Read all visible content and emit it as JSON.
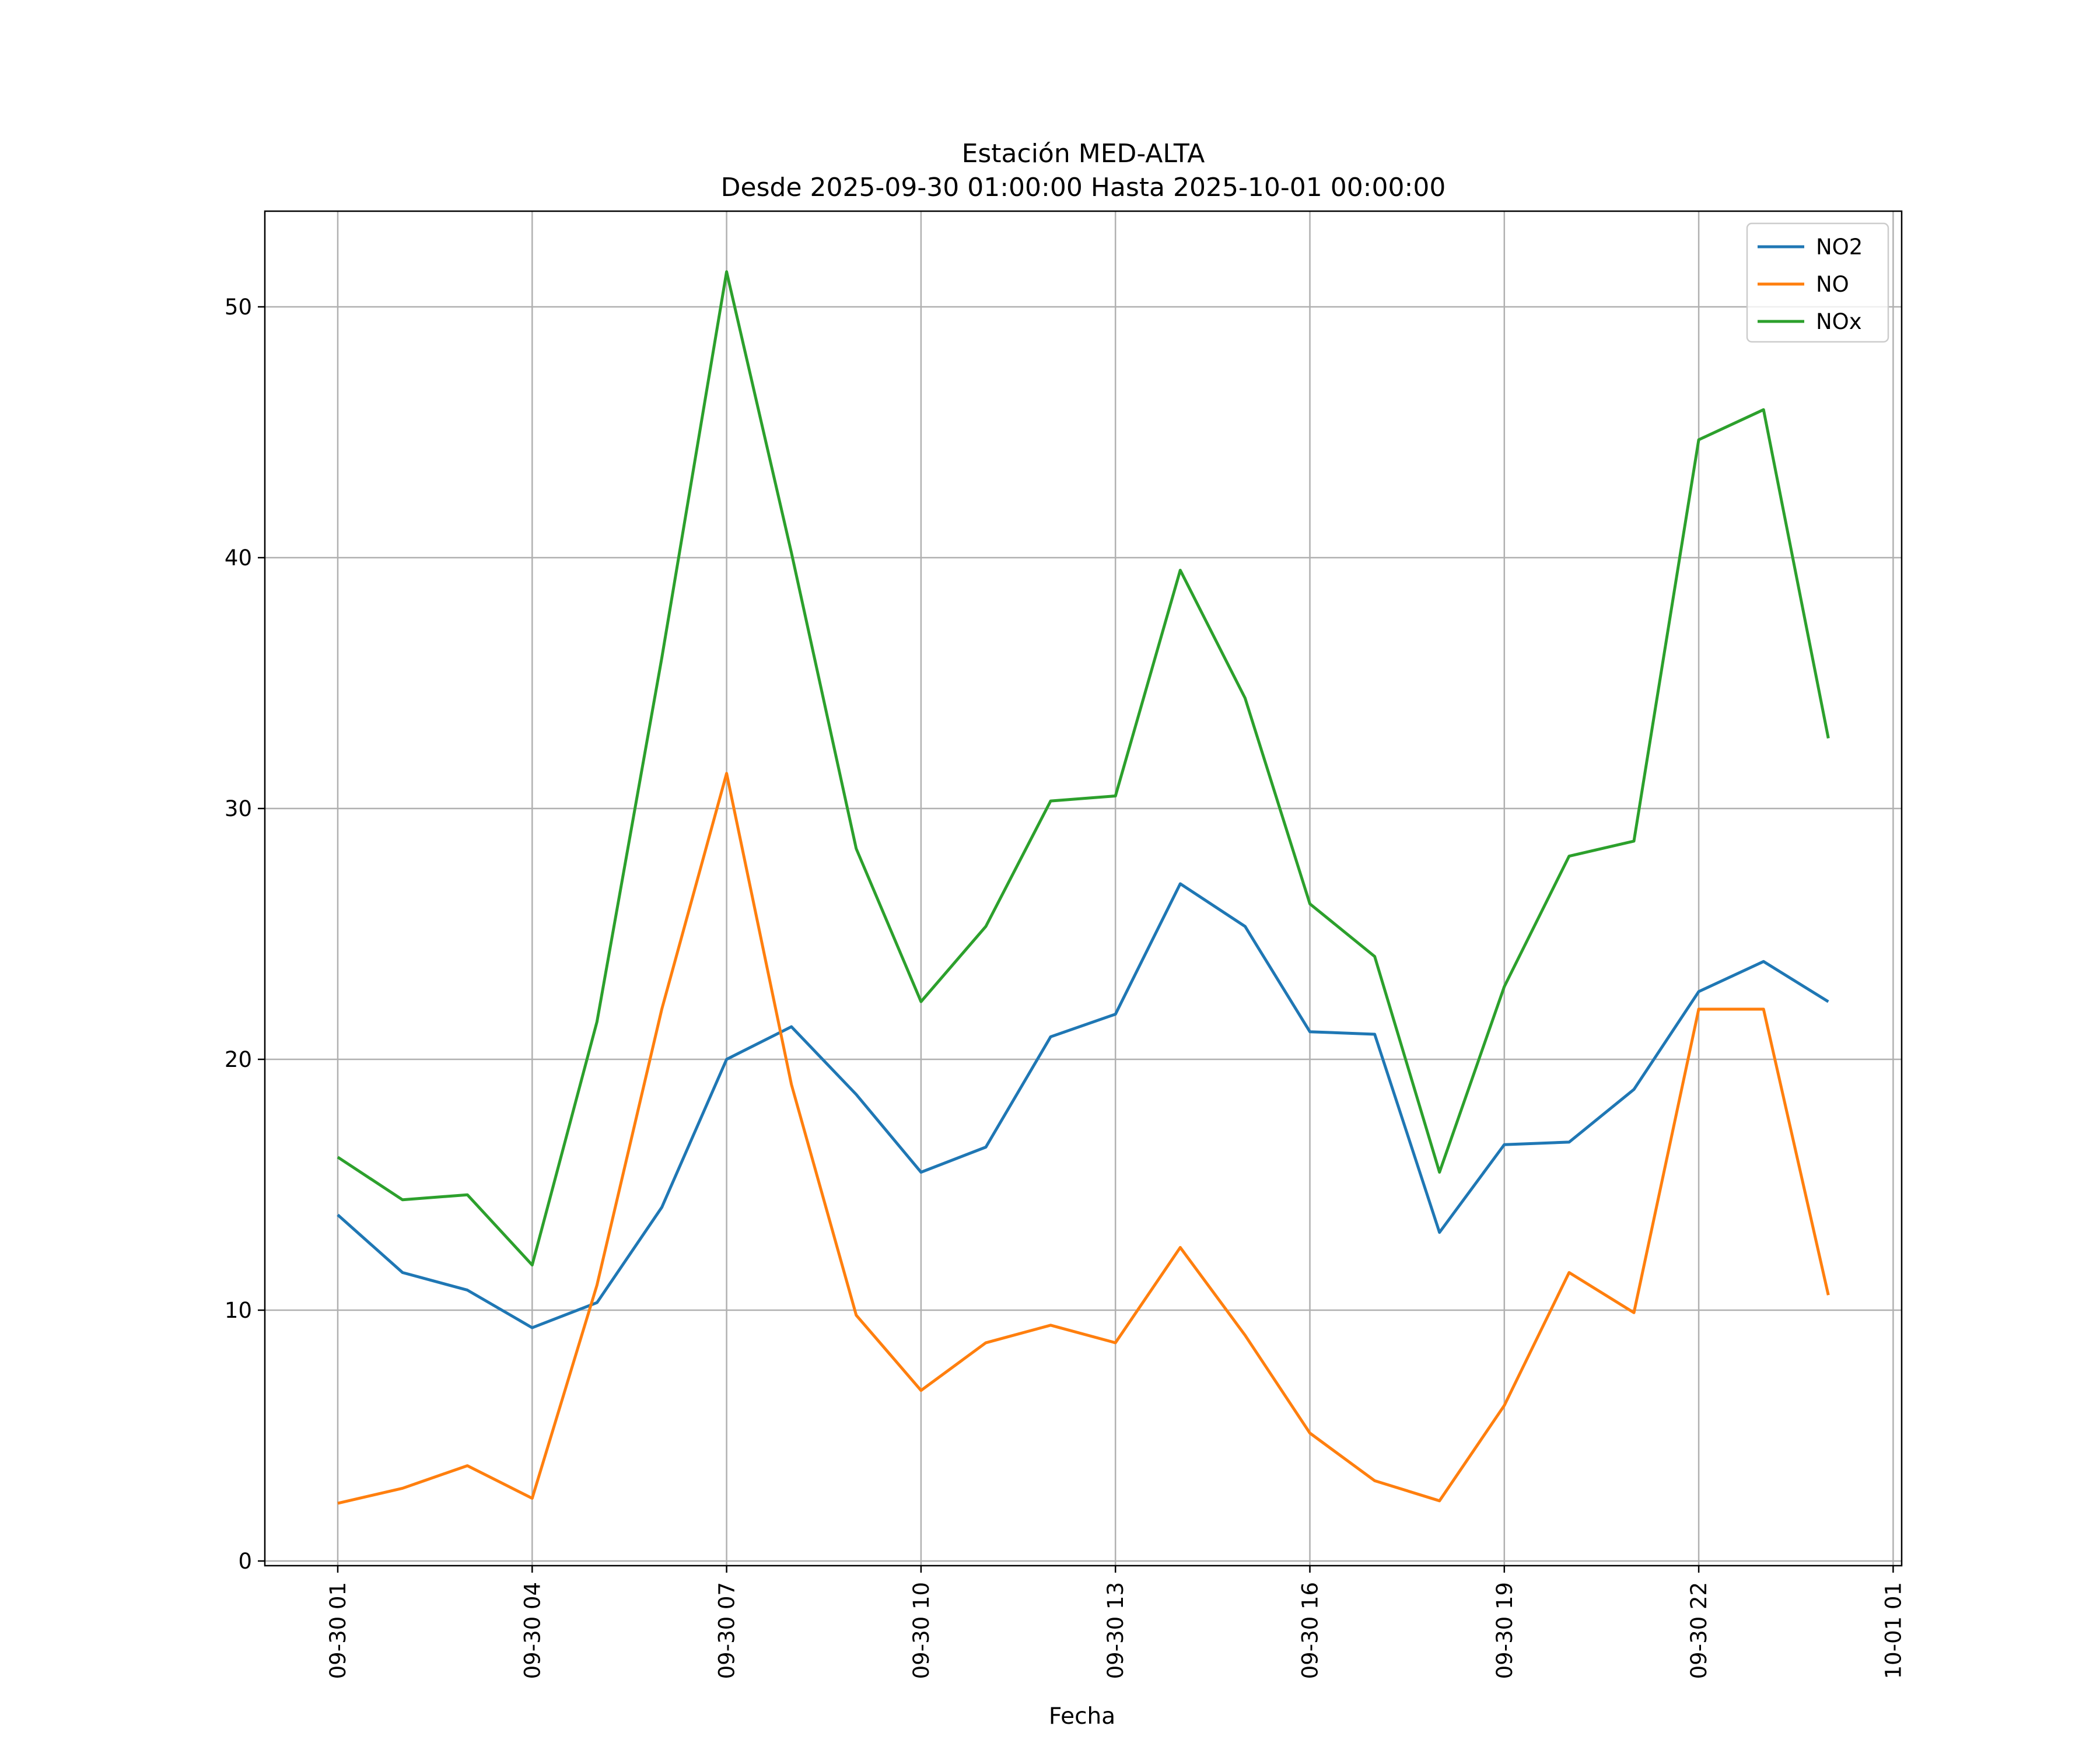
{
  "chart_data": {
    "type": "line",
    "title": "Estación MED-ALTA",
    "subtitle": "Desde 2025-09-30 01:00:00 Hasta 2025-10-01 00:00:00",
    "xlabel": "Fecha",
    "ylabel": "",
    "x": [
      "2025-09-30 01:00",
      "2025-09-30 02:00",
      "2025-09-30 03:00",
      "2025-09-30 04:00",
      "2025-09-30 05:00",
      "2025-09-30 06:00",
      "2025-09-30 07:00",
      "2025-09-30 08:00",
      "2025-09-30 09:00",
      "2025-09-30 10:00",
      "2025-09-30 11:00",
      "2025-09-30 12:00",
      "2025-09-30 13:00",
      "2025-09-30 14:00",
      "2025-09-30 15:00",
      "2025-09-30 16:00",
      "2025-09-30 17:00",
      "2025-09-30 18:00",
      "2025-09-30 19:00",
      "2025-09-30 20:00",
      "2025-09-30 21:00",
      "2025-09-30 22:00",
      "2025-09-30 23:00",
      "2025-10-01 00:00"
    ],
    "x_ticks": [
      "09-30 01",
      "09-30 04",
      "09-30 07",
      "09-30 10",
      "09-30 13",
      "09-30 16",
      "09-30 19",
      "09-30 22",
      "10-01 01"
    ],
    "y_ticks": [
      "0",
      "10",
      "20",
      "30",
      "40",
      "50"
    ],
    "ylim": [
      0,
      54
    ],
    "grid": true,
    "legend_position": "top-right",
    "series": [
      {
        "name": "NO2",
        "color": "#1f77b4",
        "values": [
          13.8,
          11.5,
          10.8,
          9.3,
          10.3,
          14.1,
          20.0,
          21.3,
          18.6,
          15.5,
          16.5,
          20.9,
          21.8,
          27.0,
          25.3,
          21.1,
          21.0,
          13.1,
          16.6,
          16.7,
          18.8,
          22.7,
          23.9,
          22.3
        ]
      },
      {
        "name": "NO",
        "color": "#ff7f0e",
        "values": [
          2.3,
          2.9,
          3.8,
          2.5,
          11.0,
          22.0,
          31.4,
          19.0,
          9.8,
          6.8,
          8.7,
          9.4,
          8.7,
          12.5,
          9.0,
          5.1,
          3.2,
          2.4,
          6.2,
          11.5,
          9.9,
          22.0,
          22.0,
          10.6
        ]
      },
      {
        "name": "NOx",
        "color": "#2ca02c",
        "values": [
          16.1,
          14.4,
          14.6,
          11.8,
          21.5,
          36.0,
          51.4,
          40.2,
          28.4,
          22.3,
          25.3,
          30.3,
          30.5,
          39.5,
          34.4,
          26.2,
          24.1,
          15.5,
          22.9,
          28.1,
          28.7,
          44.7,
          45.9,
          32.8
        ]
      }
    ]
  }
}
